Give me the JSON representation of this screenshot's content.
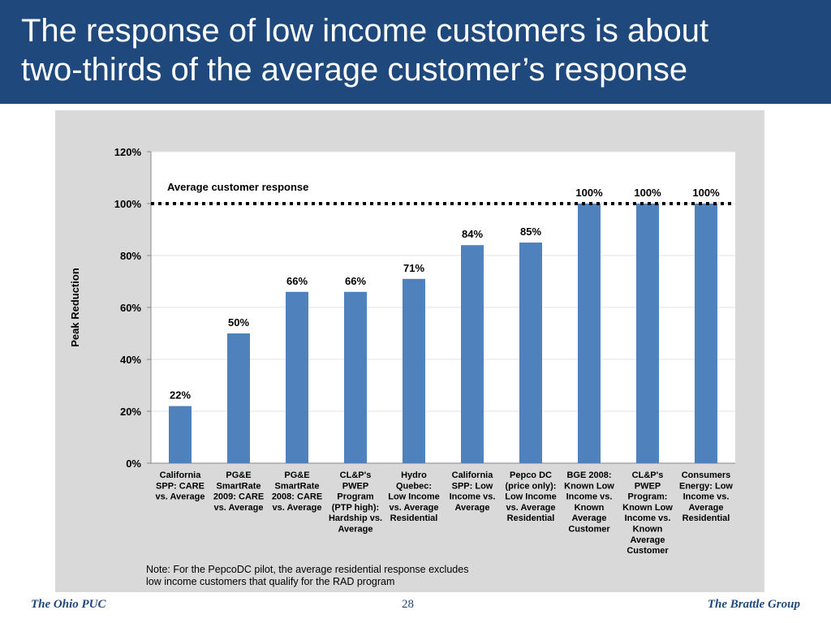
{
  "slide": {
    "title_line1": "The response of low income customers is about",
    "title_line2": "two-thirds of the average customer’s response"
  },
  "footer": {
    "left": "The Ohio PUC",
    "page_number": "28",
    "right": "The Brattle Group"
  },
  "colors": {
    "header": "#1f497d",
    "bar": "#4f81bd",
    "panel": "#d9d9d9"
  },
  "chart_data": {
    "type": "bar",
    "ylabel": "Peak Reduction",
    "ylim": [
      0,
      1.2
    ],
    "yticks": [
      0,
      0.2,
      0.4,
      0.6,
      0.8,
      1.0,
      1.2
    ],
    "ytick_labels": [
      "0%",
      "20%",
      "40%",
      "60%",
      "80%",
      "100%",
      "120%"
    ],
    "grid": true,
    "categories": [
      [
        "California",
        "SPP: CARE",
        "vs. Average"
      ],
      [
        "PG&E",
        "SmartRate",
        "2009: CARE",
        "vs. Average"
      ],
      [
        "PG&E",
        "SmartRate",
        "2008: CARE",
        "vs. Average"
      ],
      [
        "CL&P's",
        "PWEP",
        "Program",
        "(PTP high):",
        "Hardship vs.",
        "Average"
      ],
      [
        "Hydro",
        "Quebec:",
        "Low Income",
        "vs. Average",
        "Residential"
      ],
      [
        "California",
        "SPP: Low",
        "Income vs.",
        "Average"
      ],
      [
        "Pepco DC",
        "(price only):",
        "Low Income",
        "vs. Average",
        "Residential"
      ],
      [
        "BGE 2008:",
        "Known Low",
        "Income vs.",
        "Known",
        "Average",
        "Customer"
      ],
      [
        "CL&P's",
        "PWEP",
        "Program:",
        "Known Low",
        "Income vs.",
        "Known",
        "Average",
        "Customer"
      ],
      [
        "Consumers",
        "Energy: Low",
        "Income vs.",
        "Average",
        "Residential"
      ]
    ],
    "values": [
      0.22,
      0.5,
      0.66,
      0.66,
      0.71,
      0.84,
      0.85,
      1.0,
      1.0,
      1.0
    ],
    "data_labels": [
      "22%",
      "50%",
      "66%",
      "66%",
      "71%",
      "84%",
      "85%",
      "100%",
      "100%",
      "100%"
    ],
    "reference_line": {
      "value": 1.0,
      "label": "Average customer response",
      "style": "dotted"
    },
    "note_line1": "Note: For the PepcoDC pilot, the average residential response excludes",
    "note_line2": "low income customers that qualify for the RAD program"
  }
}
